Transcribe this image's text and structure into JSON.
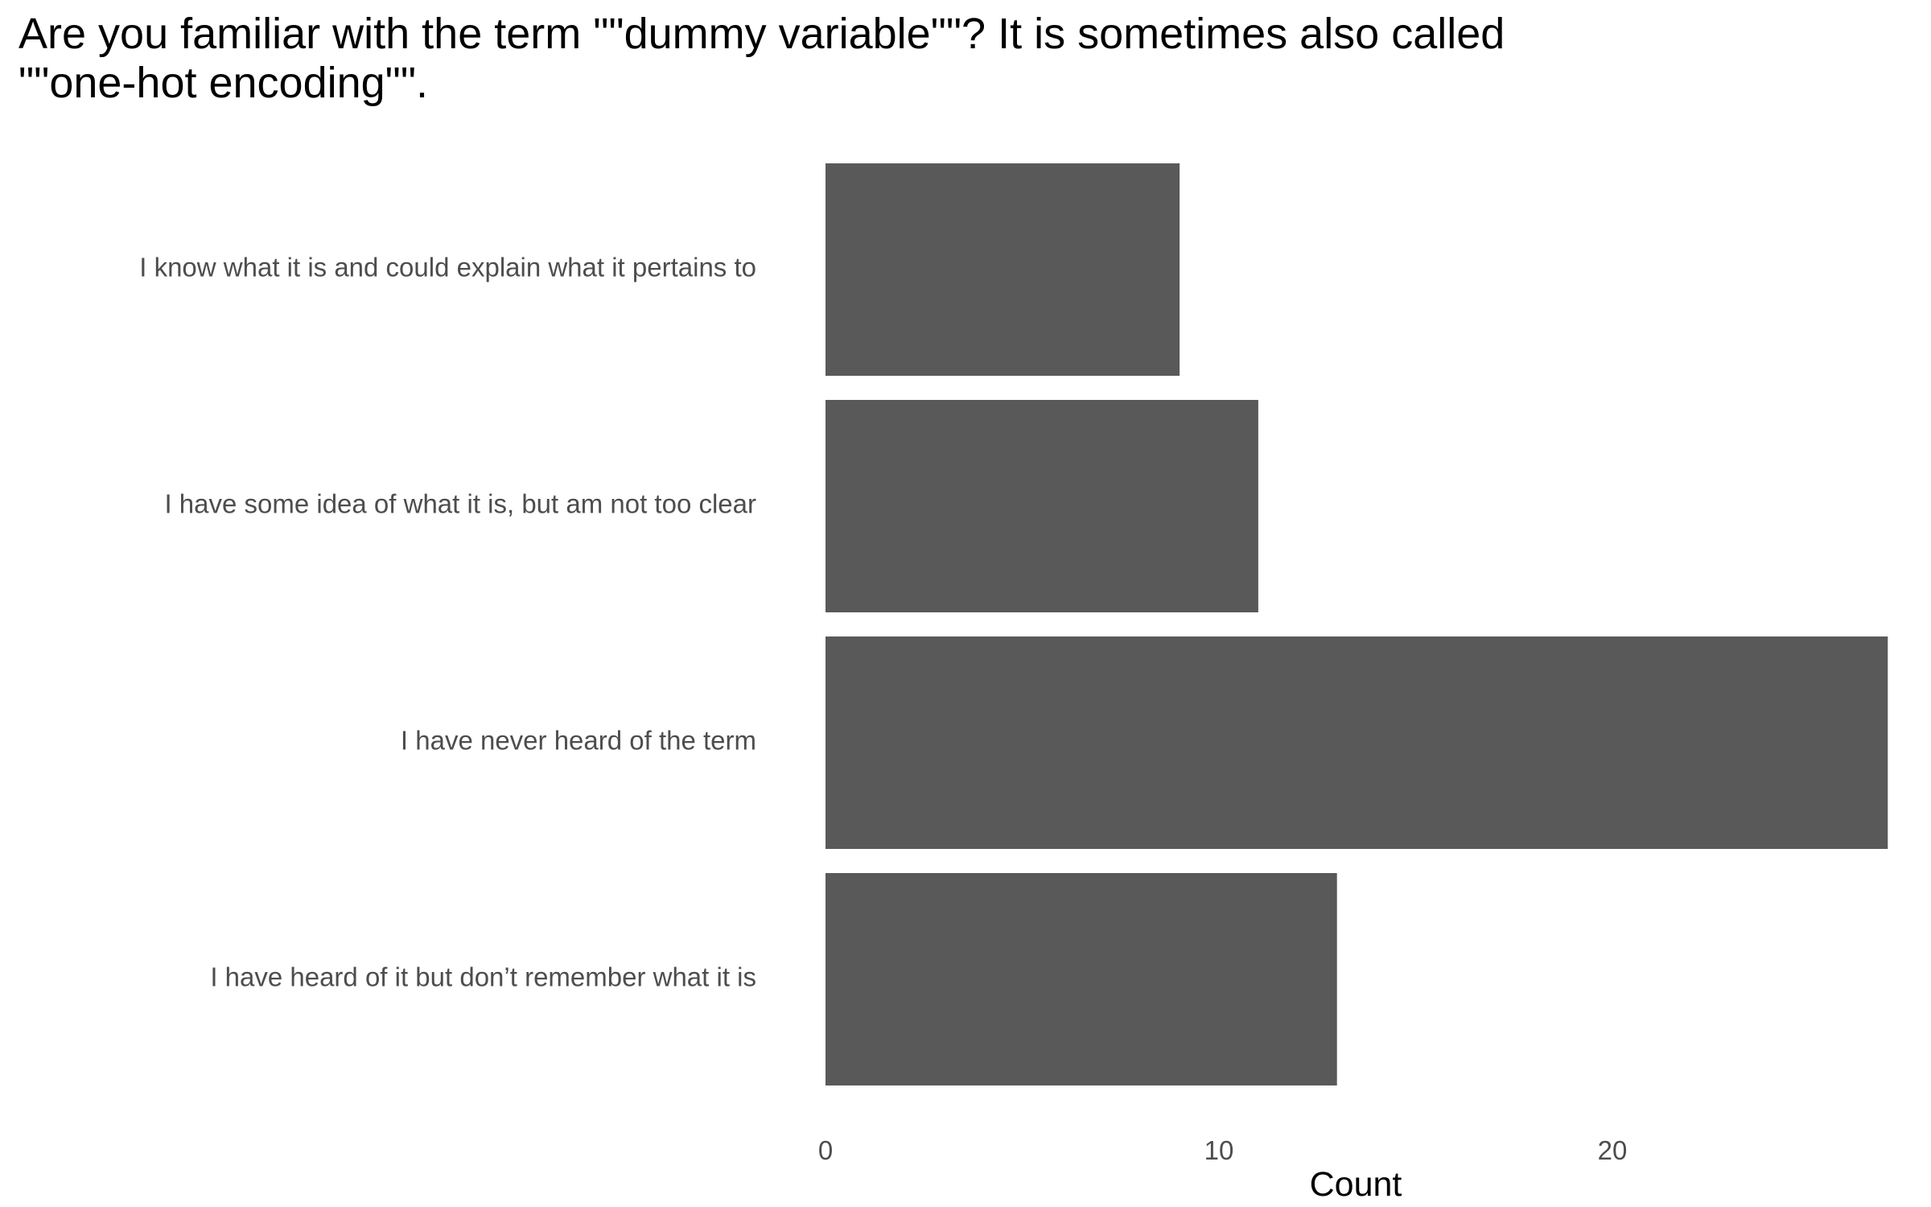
{
  "chart_data": {
    "type": "bar",
    "orientation": "horizontal",
    "title": "Are you familiar with the term \"\"dummy variable\"\"? It is sometimes also called \"\"one-hot encoding\"\".",
    "xlabel": "Count",
    "ylabel": "",
    "categories": [
      "I know what it is and could explain what it pertains to",
      "I have some idea of what it is, but am not too clear",
      "I have never heard of the term",
      "I have heard of it but don’t remember what it is"
    ],
    "values": [
      9,
      11,
      27,
      13
    ],
    "xlim": [
      0,
      27
    ],
    "x_ticks": [
      0,
      10,
      20
    ],
    "bar_color": "#595959",
    "grid": false,
    "legend": "none"
  }
}
